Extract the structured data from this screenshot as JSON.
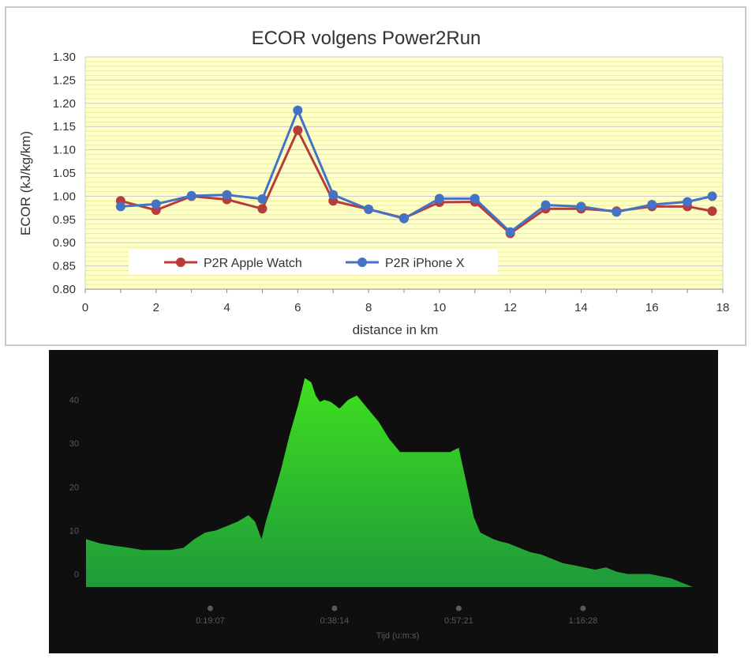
{
  "chart_data": [
    {
      "type": "line",
      "title": "ECOR volgens Power2Run",
      "xlabel": "distance in km",
      "ylabel": "ECOR (kJ/kg/km)",
      "xlim": [
        0,
        18
      ],
      "ylim": [
        0.8,
        1.3
      ],
      "x_ticks": [
        "0",
        "2",
        "4",
        "6",
        "8",
        "10",
        "12",
        "14",
        "16",
        "18"
      ],
      "y_ticks": [
        "0.80",
        "0.85",
        "0.90",
        "0.95",
        "1.00",
        "1.05",
        "1.10",
        "1.15",
        "1.20",
        "1.25",
        "1.30"
      ],
      "grid": true,
      "legend_position": "bottom-left",
      "plot_background": "#ffffc8",
      "series": [
        {
          "name": "P2R Apple Watch",
          "color": "#b83c3c",
          "x": [
            1,
            2,
            3,
            4,
            5,
            6,
            7,
            8,
            9,
            10,
            11,
            12,
            13,
            14,
            15,
            16,
            17,
            17.7
          ],
          "y": [
            0.99,
            0.97,
            1.0,
            0.993,
            0.973,
            1.142,
            0.99,
            0.972,
            0.953,
            0.987,
            0.988,
            0.92,
            0.973,
            0.973,
            0.968,
            0.978,
            0.978,
            0.968
          ]
        },
        {
          "name": "P2R iPhone X",
          "color": "#4472c4",
          "x": [
            1,
            2,
            3,
            4,
            5,
            6,
            7,
            8,
            9,
            10,
            11,
            12,
            13,
            14,
            15,
            16,
            17,
            17.7
          ],
          "y": [
            0.978,
            0.983,
            1.001,
            1.003,
            0.994,
            1.185,
            1.003,
            0.972,
            0.952,
            0.995,
            0.995,
            0.923,
            0.981,
            0.978,
            0.966,
            0.982,
            0.988,
            1.0
          ]
        }
      ]
    },
    {
      "type": "area",
      "xlabel": "Tijd (u:m:s)",
      "ylabel": "",
      "y_ticks": [
        "0",
        "10",
        "20",
        "30",
        "40"
      ],
      "ylim": [
        -3,
        46
      ],
      "x_ticks": [
        "0:19:07",
        "0:38:14",
        "0:57:21",
        "1:16:28"
      ],
      "x_tick_seconds": [
        1147,
        2294,
        3441,
        4588
      ],
      "xlim_seconds": [
        0,
        5740
      ],
      "fill_top_color": "#3fe01e",
      "fill_bottom_color": "#1e9a3a",
      "background": "#0f0f0f",
      "series": [
        {
          "x_seconds": [
            0,
            130,
            260,
            400,
            520,
            650,
            780,
            900,
            1000,
            1100,
            1200,
            1300,
            1400,
            1500,
            1560,
            1620,
            1660,
            1720,
            1800,
            1880,
            1960,
            2020,
            2080,
            2120,
            2160,
            2200,
            2260,
            2340,
            2420,
            2500,
            2600,
            2700,
            2800,
            2900,
            3000,
            3100,
            3200,
            3280,
            3360,
            3440,
            3520,
            3580,
            3640,
            3680,
            3720,
            3760,
            3820,
            3900,
            4000,
            4100,
            4200,
            4300,
            4400,
            4500,
            4600,
            4700,
            4800,
            4900,
            5000,
            5100,
            5200,
            5300,
            5400,
            5500,
            5600,
            5700
          ],
          "values": [
            8,
            7,
            6.5,
            6,
            5.5,
            5.5,
            5.5,
            6,
            8,
            9.5,
            10,
            11,
            12,
            13.5,
            12,
            8,
            12,
            17,
            24,
            32,
            39,
            45,
            44,
            41,
            39.5,
            40,
            39.5,
            38,
            40,
            41,
            38,
            35,
            31,
            28,
            28,
            28,
            28,
            28,
            28,
            29,
            20,
            13,
            9.5,
            9,
            8.5,
            8,
            7.5,
            7,
            6,
            5,
            4.5,
            3.5,
            2.5,
            2,
            1.5,
            1,
            1.5,
            0.5,
            0,
            0,
            0,
            -0.5,
            -1,
            -2,
            -3,
            -3
          ]
        }
      ]
    }
  ]
}
